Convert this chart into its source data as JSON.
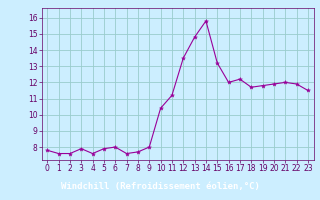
{
  "x": [
    0,
    1,
    2,
    3,
    4,
    5,
    6,
    7,
    8,
    9,
    10,
    11,
    12,
    13,
    14,
    15,
    16,
    17,
    18,
    19,
    20,
    21,
    22,
    23
  ],
  "y": [
    7.8,
    7.6,
    7.6,
    7.9,
    7.6,
    7.9,
    8.0,
    7.6,
    7.7,
    8.0,
    10.4,
    11.2,
    13.5,
    14.8,
    15.8,
    13.2,
    12.0,
    12.2,
    11.7,
    11.8,
    11.9,
    12.0,
    11.9,
    11.5
  ],
  "line_color": "#990099",
  "marker": "*",
  "marker_size": 3,
  "bg_color": "#cceeff",
  "grid_color": "#99cccc",
  "xlabel": "Windchill (Refroidissement éolien,°C)",
  "xlim": [
    -0.5,
    23.5
  ],
  "ylim": [
    7.2,
    16.6
  ],
  "yticks": [
    8,
    9,
    10,
    11,
    12,
    13,
    14,
    15,
    16
  ],
  "xticks": [
    0,
    1,
    2,
    3,
    4,
    5,
    6,
    7,
    8,
    9,
    10,
    11,
    12,
    13,
    14,
    15,
    16,
    17,
    18,
    19,
    20,
    21,
    22,
    23
  ],
  "tick_color": "#660066",
  "xlabel_bg": "#7700bb",
  "xlabel_fg": "#ffffff",
  "tick_fontsize": 5.5,
  "xlabel_fontsize": 6.5
}
